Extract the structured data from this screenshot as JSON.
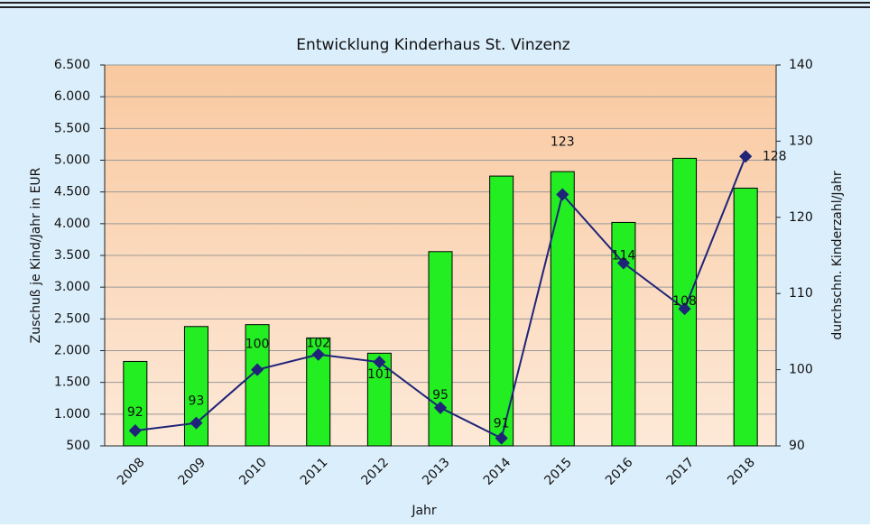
{
  "chart_data": {
    "type": "bar",
    "title": "Entwicklung Kinderhaus St. Vinzenz",
    "x_label": "Jahr",
    "y_label": "Zuschuß je Kind/Jahr in EUR",
    "y2_label": "durchschn. Kinderzahl/Jahr",
    "categories": [
      "2008",
      "2009",
      "2010",
      "2011",
      "2012",
      "2013",
      "2014",
      "2015",
      "2016",
      "2017",
      "2018"
    ],
    "series": [
      {
        "name": "Zuschuß je Kind/Jahr",
        "type": "bar",
        "color": "#22ee22",
        "values": [
          1830,
          2380,
          2410,
          2200,
          1960,
          3560,
          4750,
          4820,
          4020,
          5030,
          4560
        ]
      },
      {
        "name": "durchschn. Kinderzahl/Jahr",
        "type": "line",
        "axis": "y2",
        "color": "#1f2478",
        "values": [
          92,
          93,
          100,
          102,
          101,
          95,
          91,
          123,
          114,
          108,
          128
        ]
      }
    ],
    "ylim": [
      500,
      6500
    ],
    "yticks": [
      {
        "value": 500,
        "label": "500"
      },
      {
        "value": 1000,
        "label": "1.000"
      },
      {
        "value": 1500,
        "label": "1.500"
      },
      {
        "value": 2000,
        "label": "2.000"
      },
      {
        "value": 2500,
        "label": "2.500"
      },
      {
        "value": 3000,
        "label": "3.000"
      },
      {
        "value": 3500,
        "label": "3.500"
      },
      {
        "value": 4000,
        "label": "4.000"
      },
      {
        "value": 4500,
        "label": "4.500"
      },
      {
        "value": 5000,
        "label": "5.000"
      },
      {
        "value": 5500,
        "label": "5.500"
      },
      {
        "value": 6000,
        "label": "6.000"
      },
      {
        "value": 6500,
        "label": "6.500"
      }
    ],
    "y2lim": [
      90,
      140
    ],
    "y2ticks": [
      90,
      100,
      110,
      120,
      130,
      140
    ],
    "grid": true
  }
}
